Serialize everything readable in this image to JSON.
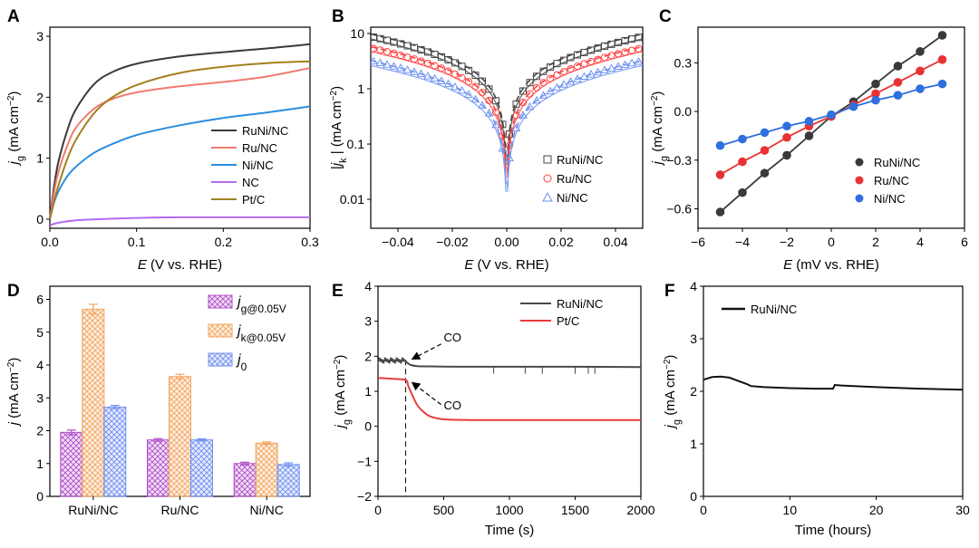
{
  "chart_data": [
    {
      "panel": "A",
      "type": "line",
      "xlabel": "E (V vs. RHE)",
      "ylabel": "j_g (mA cm^-2)",
      "xlim": [
        0,
        0.3
      ],
      "ylim": [
        -0.15,
        3.15
      ],
      "xticks": [
        0.0,
        0.1,
        0.2,
        0.3
      ],
      "yticks": [
        0,
        1,
        2,
        3
      ],
      "xtick_labels": [
        "0.0",
        "0.1",
        "0.2",
        "0.3"
      ],
      "legend": "center-right",
      "series": [
        {
          "name": "RuNi/NC",
          "color": "#3a3a3a",
          "x": [
            0,
            0.005,
            0.01,
            0.02,
            0.03,
            0.05,
            0.07,
            0.1,
            0.15,
            0.2,
            0.25,
            0.3
          ],
          "y": [
            0,
            0.55,
            0.95,
            1.45,
            1.8,
            2.2,
            2.4,
            2.55,
            2.67,
            2.74,
            2.8,
            2.87
          ]
        },
        {
          "name": "Ru/NC",
          "color": "#f07b72",
          "x": [
            0,
            0.005,
            0.01,
            0.02,
            0.03,
            0.05,
            0.07,
            0.1,
            0.15,
            0.2,
            0.25,
            0.3
          ],
          "y": [
            0,
            0.45,
            0.78,
            1.2,
            1.5,
            1.8,
            1.96,
            2.08,
            2.18,
            2.25,
            2.34,
            2.48
          ]
        },
        {
          "name": "Ni/NC",
          "color": "#2a8de0",
          "x": [
            0,
            0.005,
            0.01,
            0.02,
            0.03,
            0.05,
            0.07,
            0.1,
            0.15,
            0.2,
            0.25,
            0.3
          ],
          "y": [
            0,
            0.28,
            0.46,
            0.7,
            0.86,
            1.08,
            1.22,
            1.38,
            1.54,
            1.66,
            1.75,
            1.85
          ]
        },
        {
          "name": "NC",
          "color": "#b26cf0",
          "x": [
            0,
            0.01,
            0.03,
            0.06,
            0.1,
            0.15,
            0.2,
            0.25,
            0.3
          ],
          "y": [
            -0.1,
            -0.06,
            -0.02,
            0.0,
            0.02,
            0.03,
            0.03,
            0.03,
            0.03
          ]
        },
        {
          "name": "Pt/C",
          "color": "#a3801c",
          "x": [
            0,
            0.005,
            0.01,
            0.02,
            0.03,
            0.05,
            0.07,
            0.1,
            0.15,
            0.2,
            0.25,
            0.3
          ],
          "y": [
            0,
            0.3,
            0.56,
            0.98,
            1.3,
            1.72,
            1.98,
            2.2,
            2.4,
            2.5,
            2.56,
            2.59
          ]
        }
      ]
    },
    {
      "panel": "B",
      "type": "scatter",
      "xlabel": "E (V vs. RHE)",
      "ylabel": "|j_k| (mA cm^-2)",
      "xlim": [
        -0.05,
        0.05
      ],
      "ylim": [
        0.003,
        13
      ],
      "yscale": "log",
      "xticks": [
        -0.04,
        -0.02,
        0.0,
        0.02,
        0.04
      ],
      "yticks": [
        0.01,
        0.1,
        1,
        10
      ],
      "xtick_labels": [
        "−0.04",
        "−0.02",
        "0.00",
        "0.02",
        "0.04"
      ],
      "ytick_labels": [
        "0.01",
        "0.1",
        "1",
        "10"
      ],
      "legend": "center-right",
      "series": [
        {
          "name": "RuNi/NC",
          "color": "#444444",
          "marker": "square",
          "j0": 2.7,
          "scale": 1.6
        },
        {
          "name": "Ru/NC",
          "color": "#ff4040",
          "marker": "circle",
          "j0": 1.7,
          "scale": 1.5
        },
        {
          "name": "Ni/NC",
          "color": "#6e93f0",
          "marker": "triangle",
          "j0": 0.95,
          "scale": 1.5
        }
      ]
    },
    {
      "panel": "C",
      "type": "scatter",
      "xlabel": "E (mV vs. RHE)",
      "ylabel": "j_g (mA cm^-2)",
      "xlim": [
        -6,
        6
      ],
      "ylim": [
        -0.72,
        0.52
      ],
      "xticks": [
        -6,
        -4,
        -2,
        0,
        2,
        4,
        6
      ],
      "yticks": [
        -0.6,
        -0.3,
        0.0,
        0.3
      ],
      "xtick_labels": [
        "−6",
        "−4",
        "−2",
        "0",
        "2",
        "4",
        "6"
      ],
      "ytick_labels": [
        "−0.6",
        "−0.3",
        "0.0",
        "0.3"
      ],
      "legend": "bottom-right",
      "series": [
        {
          "name": "RuNi/NC",
          "color": "#3a3a3a",
          "x": [
            -5,
            -4,
            -3,
            -2,
            -1,
            0,
            1,
            2,
            3,
            4,
            5
          ],
          "y": [
            -0.62,
            -0.5,
            -0.38,
            -0.27,
            -0.15,
            -0.03,
            0.06,
            0.17,
            0.28,
            0.37,
            0.47
          ]
        },
        {
          "name": "Ru/NC",
          "color": "#e83232",
          "x": [
            -5,
            -4,
            -3,
            -2,
            -1,
            0,
            1,
            2,
            3,
            4,
            5
          ],
          "y": [
            -0.39,
            -0.31,
            -0.24,
            -0.16,
            -0.09,
            -0.03,
            0.04,
            0.11,
            0.18,
            0.25,
            0.32
          ]
        },
        {
          "name": "Ni/NC",
          "color": "#2f6fde",
          "x": [
            -5,
            -4,
            -3,
            -2,
            -1,
            0,
            1,
            2,
            3,
            4,
            5
          ],
          "y": [
            -0.21,
            -0.17,
            -0.13,
            -0.09,
            -0.06,
            -0.02,
            0.03,
            0.07,
            0.1,
            0.14,
            0.17
          ]
        }
      ]
    },
    {
      "panel": "D",
      "type": "bar",
      "xlabel": "",
      "ylabel": "j (mA cm^-2)",
      "ylim": [
        0,
        6.4
      ],
      "yticks": [
        0,
        1,
        2,
        3,
        4,
        5,
        6
      ],
      "categories": [
        "RuNi/NC",
        "Ru/NC",
        "Ni/NC"
      ],
      "legend": "top-right",
      "series": [
        {
          "name": "j_g@0.05V",
          "color": "#b04cc8",
          "values": [
            1.95,
            1.72,
            1.0
          ],
          "errors": [
            0.07,
            0.04,
            0.04
          ]
        },
        {
          "name": "j_k@0.05V",
          "color": "#f2a45e",
          "values": [
            5.7,
            3.65,
            1.62
          ],
          "errors": [
            0.15,
            0.07,
            0.04
          ]
        },
        {
          "name": "j_0",
          "color": "#6f8ff0",
          "values": [
            2.72,
            1.72,
            0.97
          ],
          "errors": [
            0.05,
            0.03,
            0.05
          ]
        }
      ]
    },
    {
      "panel": "E",
      "type": "line",
      "xlabel": "Time (s)",
      "ylabel": "j_g (mA cm^-2)",
      "xlim": [
        0,
        2000
      ],
      "ylim": [
        -2,
        4
      ],
      "xticks": [
        0,
        500,
        1000,
        1500,
        2000
      ],
      "yticks": [
        -2,
        -1,
        0,
        1,
        2,
        3,
        4
      ],
      "ytick_labels": [
        "−2",
        "−1",
        "0",
        "1",
        "2",
        "3",
        "4"
      ],
      "legend": "top-right",
      "annotations": [
        "CO",
        "CO"
      ],
      "co_injection_time": 210,
      "series": [
        {
          "name": "RuNi/NC",
          "color": "#4a4a4a",
          "x": [
            0,
            100,
            200,
            220,
            250,
            300,
            400,
            600,
            1000,
            1500,
            2000
          ],
          "y": [
            1.88,
            1.88,
            1.87,
            1.82,
            1.75,
            1.72,
            1.71,
            1.7,
            1.7,
            1.7,
            1.69
          ]
        },
        {
          "name": "Pt/C",
          "color": "#e83b3b",
          "x": [
            0,
            100,
            210,
            230,
            260,
            300,
            350,
            400,
            500,
            700,
            1000,
            1500,
            2000
          ],
          "y": [
            1.38,
            1.36,
            1.32,
            1.15,
            0.9,
            0.6,
            0.4,
            0.28,
            0.2,
            0.18,
            0.18,
            0.18,
            0.18
          ]
        }
      ]
    },
    {
      "panel": "F",
      "type": "line",
      "xlabel": "Time (hours)",
      "ylabel": "j_g (mA cm^-2)",
      "xlim": [
        0,
        30
      ],
      "ylim": [
        0,
        4
      ],
      "xticks": [
        0,
        10,
        20,
        30
      ],
      "yticks": [
        0,
        1,
        2,
        3,
        4
      ],
      "legend": "top-left",
      "series": [
        {
          "name": "RuNi/NC",
          "color": "#111111",
          "x": [
            0,
            1,
            2,
            3,
            4,
            5,
            5.5,
            7,
            10,
            13,
            15,
            15.2,
            16,
            20,
            25,
            30
          ],
          "y": [
            2.22,
            2.27,
            2.28,
            2.26,
            2.2,
            2.14,
            2.1,
            2.08,
            2.06,
            2.05,
            2.05,
            2.12,
            2.11,
            2.08,
            2.05,
            2.03
          ]
        }
      ]
    }
  ],
  "ui": {
    "panel_labels": [
      "A",
      "B",
      "C",
      "D",
      "E",
      "F"
    ],
    "bar_legend_subscripts": [
      "g@0.05V",
      "k@0.05V",
      "0"
    ],
    "co_label": "CO"
  }
}
